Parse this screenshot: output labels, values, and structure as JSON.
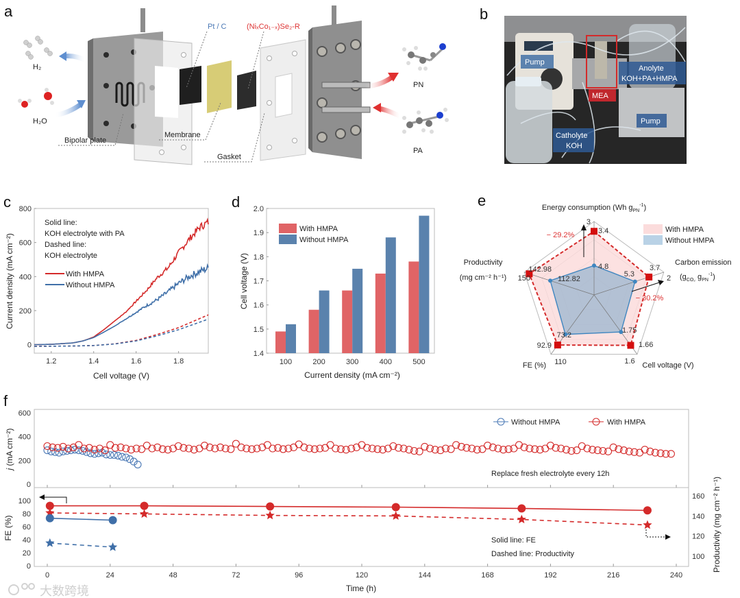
{
  "panels": {
    "a": "a",
    "b": "b",
    "c": "c",
    "d": "d",
    "e": "e",
    "f": "f"
  },
  "panel_a": {
    "h2": "H₂",
    "h2o": "H₂O",
    "ptc": "Pt / C",
    "catalyst": "(NiₓCo₁₋ₓ)Se₂-R",
    "bipolar_plate": "Bipolar plate",
    "membrane": "Membrane",
    "gasket": "Gasket",
    "pn": "PN",
    "pa": "PA"
  },
  "panel_b": {
    "pump_left": "Pump",
    "mea": "MEA",
    "anolyte": "Anolyte",
    "anolyte_content": "KOH+PA+HMPA",
    "pump_right": "Pump",
    "catholyte": "Catholyte",
    "catholyte_content": "KOH"
  },
  "watermark": "大数跨境",
  "colors": {
    "with_hmpa": "#d42a2a",
    "without_hmpa": "#3f6fa8",
    "bar_red": "#e06466",
    "bar_blue": "#5a82ad"
  },
  "chart_data": [
    {
      "type": "line",
      "xlabel": "Cell voltage (V)",
      "ylabel": "Current density (mA cm⁻²)",
      "xlim": [
        1.12,
        1.94
      ],
      "ylim": [
        -50,
        800
      ],
      "xticks": [
        "1.2",
        "1.4",
        "1.6",
        "1.8"
      ],
      "yticks": [
        "0",
        "200",
        "400",
        "600",
        "800"
      ],
      "annotations": [
        "Solid line:",
        "KOH electrolyte with PA",
        "Dashed line:",
        "KOH electrolyte"
      ],
      "legend": [
        "With HMPA",
        "Without HMPA"
      ],
      "series": [
        {
          "name": "With HMPA (KOH + PA)",
          "style": "solid",
          "color": "#d42a2a",
          "x": [
            1.12,
            1.2,
            1.3,
            1.35,
            1.4,
            1.45,
            1.5,
            1.55,
            1.6,
            1.65,
            1.7,
            1.75,
            1.8,
            1.85,
            1.9,
            1.94
          ],
          "y": [
            0,
            2,
            10,
            22,
            45,
            90,
            140,
            190,
            255,
            320,
            395,
            450,
            540,
            620,
            690,
            720
          ]
        },
        {
          "name": "Without HMPA (KOH + PA)",
          "style": "solid",
          "color": "#3f6fa8",
          "x": [
            1.12,
            1.2,
            1.3,
            1.35,
            1.4,
            1.45,
            1.5,
            1.55,
            1.6,
            1.65,
            1.7,
            1.75,
            1.8,
            1.85,
            1.9,
            1.94
          ],
          "y": [
            0,
            2,
            10,
            22,
            42,
            75,
            110,
            150,
            190,
            230,
            265,
            310,
            360,
            400,
            430,
            450
          ]
        },
        {
          "name": "With HMPA (KOH)",
          "style": "dashed",
          "color": "#d42a2a",
          "x": [
            1.12,
            1.3,
            1.4,
            1.5,
            1.6,
            1.7,
            1.8,
            1.94
          ],
          "y": [
            -10,
            -8,
            -5,
            5,
            25,
            60,
            100,
            175
          ]
        },
        {
          "name": "Without HMPA (KOH)",
          "style": "dashed",
          "color": "#3f6fa8",
          "x": [
            1.12,
            1.3,
            1.4,
            1.5,
            1.6,
            1.7,
            1.8,
            1.94
          ],
          "y": [
            -10,
            -8,
            -5,
            4,
            22,
            52,
            88,
            150
          ]
        }
      ]
    },
    {
      "type": "bar",
      "xlabel": "Current density (mA cm⁻²)",
      "ylabel": "Cell voltage (V)",
      "ylim": [
        1.4,
        2.0
      ],
      "categories": [
        "100",
        "200",
        "300",
        "400",
        "500"
      ],
      "yticks": [
        "1.4",
        "1.5",
        "1.6",
        "1.7",
        "1.8",
        "1.9",
        "2.0"
      ],
      "series": [
        {
          "name": "With HMPA",
          "color": "#e06466",
          "values": [
            1.49,
            1.58,
            1.66,
            1.73,
            1.78
          ]
        },
        {
          "name": "Without HMPA",
          "color": "#5a82ad",
          "values": [
            1.52,
            1.66,
            1.75,
            1.88,
            1.97
          ]
        }
      ]
    },
    {
      "type": "radar",
      "axes": [
        {
          "label_parts": [
            "Energy consumption (Wh g",
            "PN",
            "-1",
            ")"
          ],
          "outer_label": "3",
          "center_value": 6,
          "outer_value": 3
        },
        {
          "label_parts": [
            "Carbon emission",
            "(g",
            "CO₂",
            " g",
            "PN",
            "-1",
            ")"
          ],
          "outer_label": "2",
          "center_value": 10,
          "outer_value": 2
        },
        {
          "label_parts": [
            "Cell voltage (V)"
          ],
          "outer_label": "1.6",
          "center_value": 2.0,
          "outer_value": 1.6
        },
        {
          "label_parts": [
            "FE (%)"
          ],
          "outer_label": "110",
          "center_value": 0,
          "outer_value": 110
        },
        {
          "label_parts": [
            "Productivity",
            "(mg cm⁻² h⁻¹)"
          ],
          "outer_label": "150",
          "center_value": 50,
          "outer_value": 150
        }
      ],
      "series": [
        {
          "name": "With HMPA",
          "values": [
            3.4,
            3.7,
            1.66,
            92.9,
            142.98
          ],
          "value_labels": [
            "3.4",
            "3.7",
            "1.66",
            "92.9",
            "142.98"
          ]
        },
        {
          "name": "Without HMPA",
          "values": [
            4.8,
            5.3,
            1.75,
            73.2,
            112.82
          ],
          "value_labels": [
            "4.8",
            "5.3",
            "1.75",
            "73.2",
            "112.82"
          ]
        }
      ],
      "annotations": [
        "− 29.2%",
        "− 30.2%"
      ]
    },
    {
      "type": "scatter",
      "xlabel": "Time (h)",
      "xlim": [
        -8,
        242
      ],
      "xticks": [
        "0",
        "24",
        "48",
        "72",
        "96",
        "120",
        "144",
        "168",
        "192",
        "216",
        "240"
      ],
      "legend": [
        "Without HMPA",
        "With HMPA"
      ],
      "annotations": [
        "Replace fresh electrolyte every 12h",
        "Solid line: FE",
        "Dashed line: Productivity"
      ],
      "top": {
        "ylabel_prefix": "j",
        "ylabel": " (mA cm⁻²)",
        "yticks": [
          "0",
          "200",
          "400",
          "600"
        ],
        "series": [
          {
            "name": "Without HMPA",
            "t0": 0,
            "interval_h": 1.5,
            "values": [
              285,
              275,
              270,
              265,
              275,
              280,
              285,
              290,
              285,
              280,
              270,
              260,
              255,
              260,
              265,
              250,
              245,
              245,
              240,
              230,
              225,
              210,
              190,
              165
            ]
          },
          {
            "name": "With HMPA",
            "t0": 0,
            "interval_h": 2,
            "values": [
              320,
              310,
              305,
              315,
              300,
              310,
              330,
              300,
              305,
              290,
              300,
              285,
              330,
              305,
              310,
              300,
              290,
              300,
              295,
              325,
              300,
              310,
              295,
              290,
              300,
              320,
              305,
              300,
              290,
              300,
              325,
              310,
              300,
              310,
              300,
              295,
              340,
              310,
              300,
              295,
              300,
              310,
              330,
              300,
              305,
              295,
              300,
              310,
              335,
              310,
              300,
              295,
              300,
              305,
              330,
              300,
              295,
              290,
              300,
              310,
              330,
              305,
              300,
              295,
              290,
              300,
              320,
              305,
              300,
              290,
              280,
              275,
              315,
              300,
              290,
              285,
              300,
              295,
              330,
              315,
              305,
              300,
              290,
              295,
              325,
              310,
              300,
              290,
              295,
              300,
              330,
              310,
              300,
              295,
              290,
              300,
              325,
              305,
              300,
              290,
              280,
              285,
              320,
              300,
              290,
              285,
              280,
              275,
              310,
              295,
              285,
              275,
              270,
              265,
              290,
              275,
              265,
              260,
              255,
              255
            ]
          }
        ]
      },
      "bottom": {
        "ylabel_left": "FE (%)",
        "ylabel_right": "Productivity (mg cm⁻² h⁻¹)",
        "yticks_left": [
          "0",
          "20",
          "40",
          "60",
          "80",
          "100"
        ],
        "yticks_right": [
          "100",
          "120",
          "140",
          "160"
        ],
        "series": [
          {
            "name": "FE With HMPA",
            "axis": "left",
            "style": "solid",
            "marker": "circle",
            "color": "#d42a2a",
            "t": [
              1,
              37,
              85,
              133,
              181,
              229
            ],
            "values": [
              92,
              92,
              91,
              90,
              88,
              85
            ]
          },
          {
            "name": "Productivity With HMPA",
            "axis": "right",
            "style": "dashed",
            "marker": "star",
            "color": "#d42a2a",
            "t": [
              1,
              37,
              85,
              133,
              181,
              229
            ],
            "values": [
              143,
              142,
              140.5,
              140,
              136.5,
              131
            ]
          },
          {
            "name": "FE Without HMPA",
            "axis": "left",
            "style": "solid",
            "marker": "circle",
            "color": "#3f6fa8",
            "t": [
              1,
              25
            ],
            "values": [
              73,
              70
            ]
          },
          {
            "name": "Productivity Without HMPA",
            "axis": "right",
            "style": "dashed",
            "marker": "star",
            "color": "#3f6fa8",
            "t": [
              1,
              25
            ],
            "values": [
              113,
              109
            ]
          }
        ]
      }
    }
  ]
}
